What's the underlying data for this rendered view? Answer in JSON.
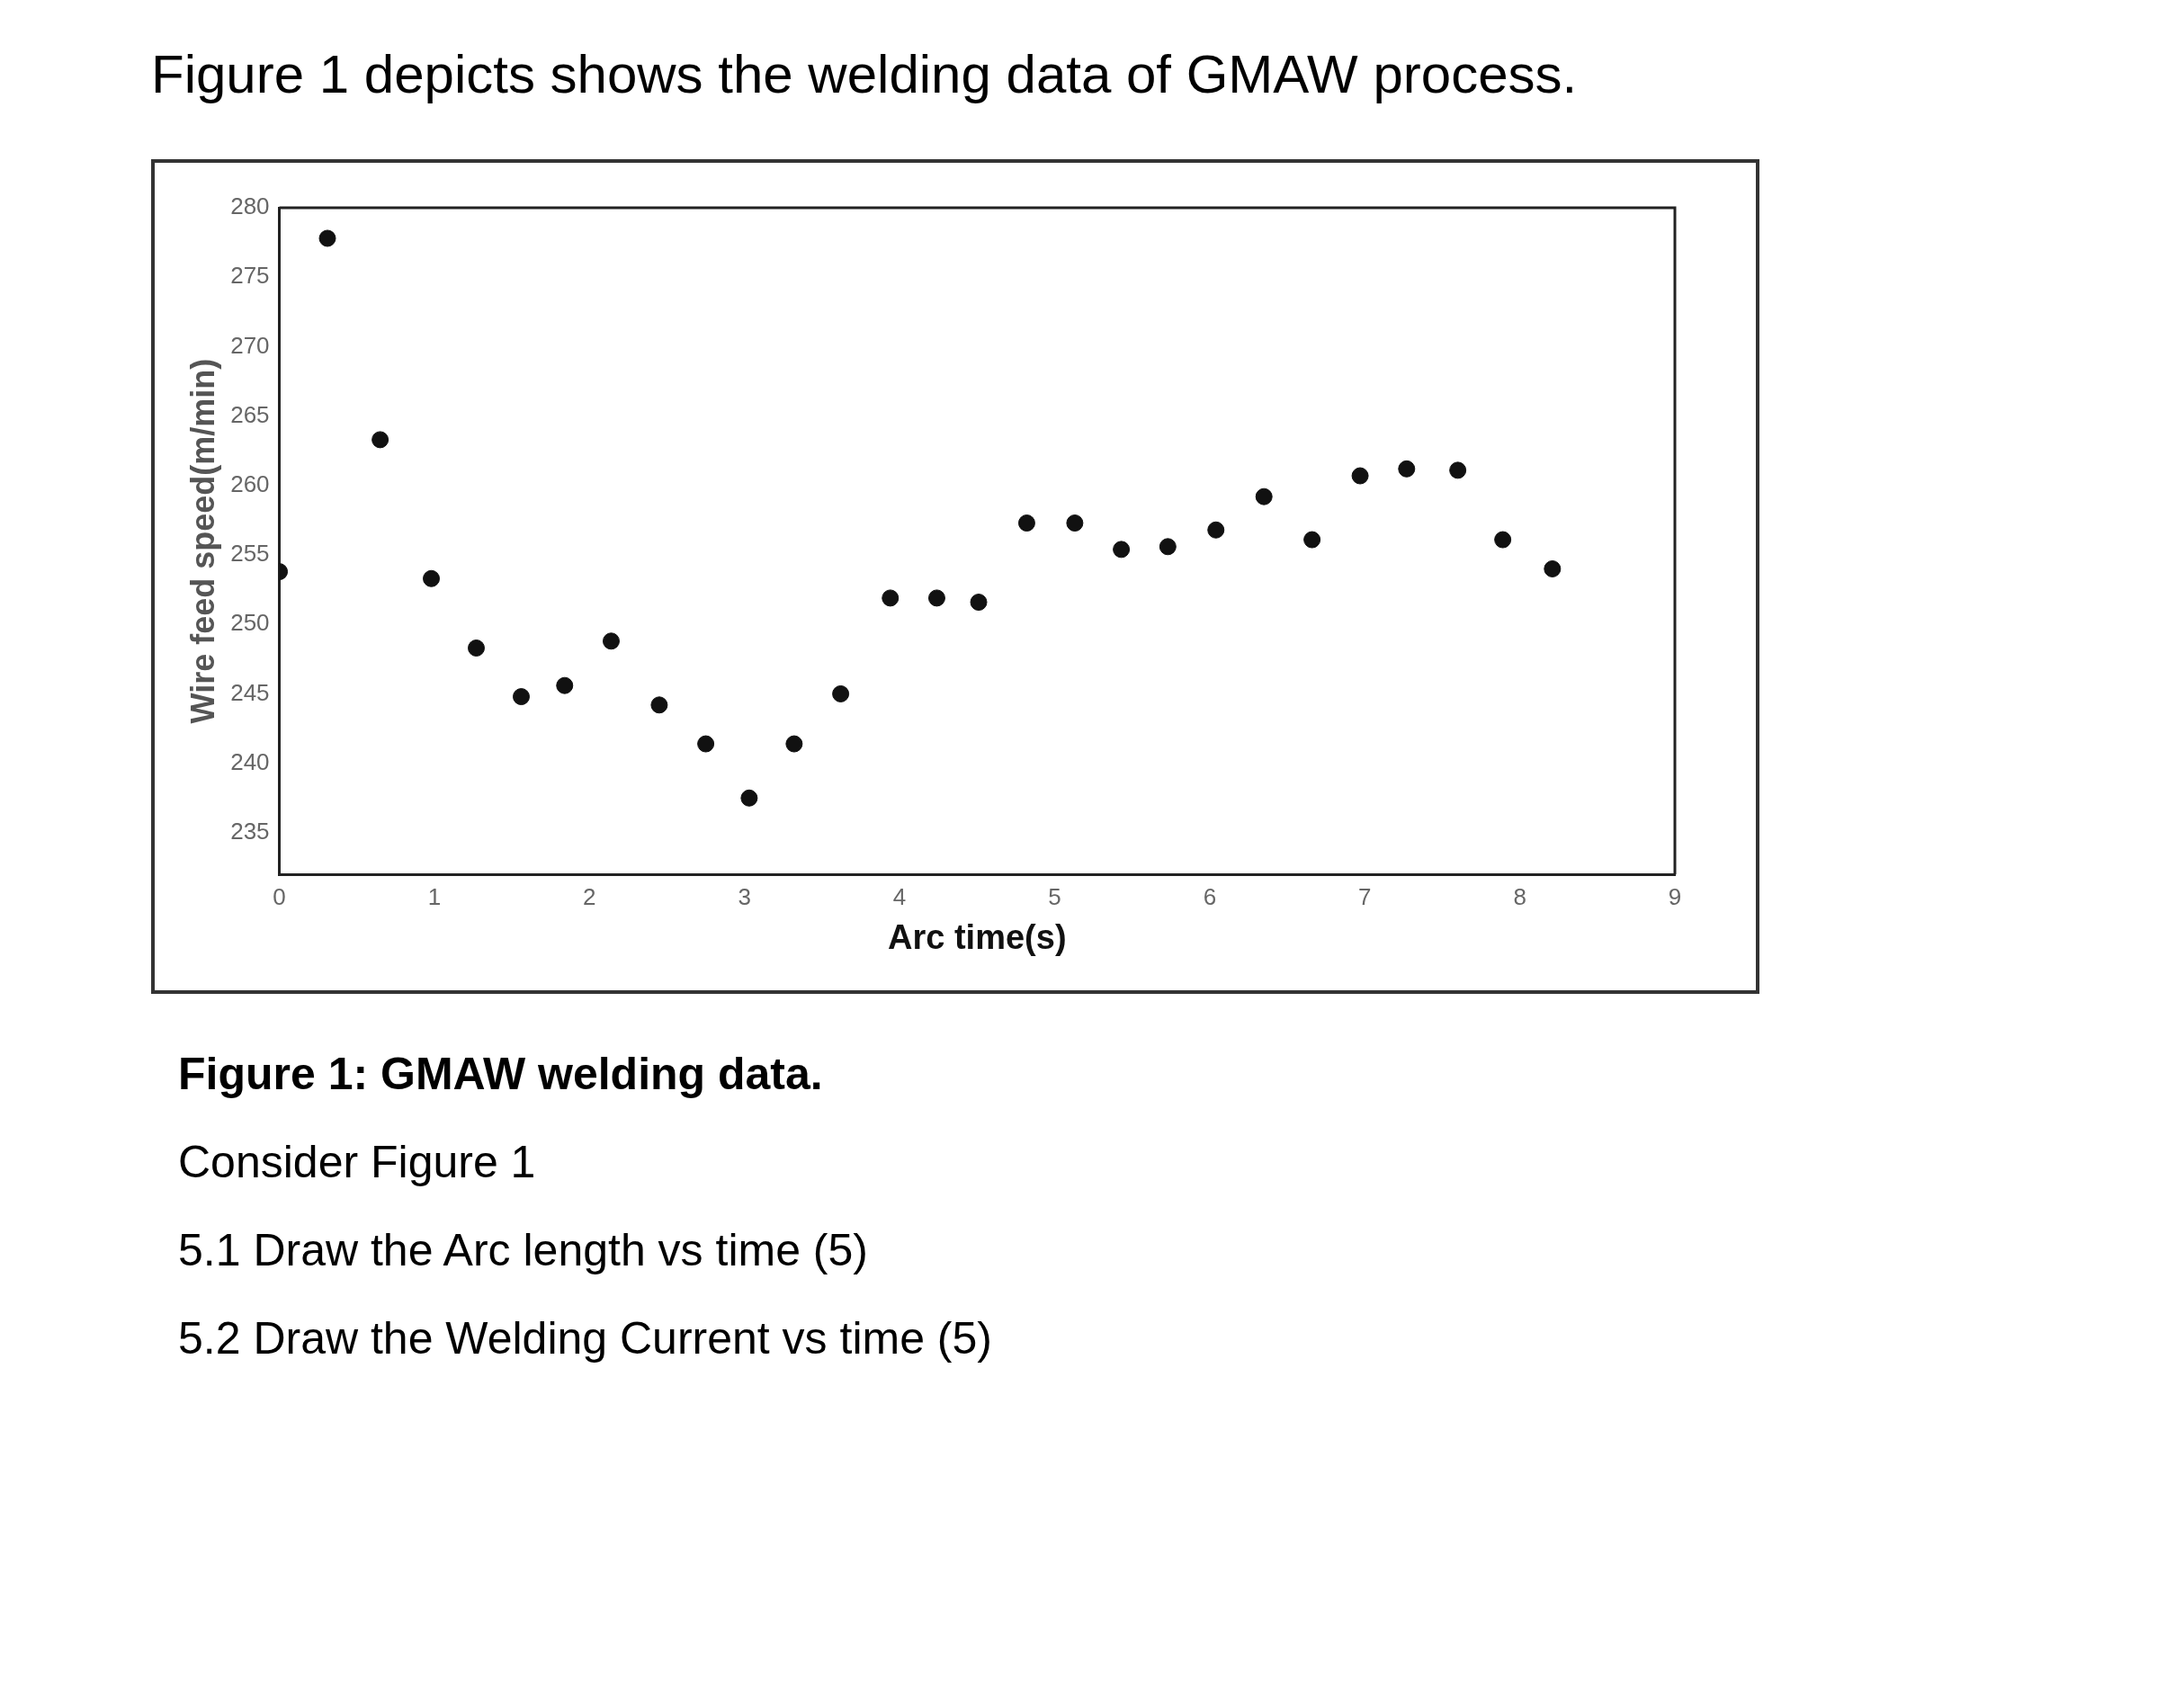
{
  "chart_data": {
    "type": "scatter",
    "title": "Figure 1 depicts shows the welding data of GMAW process.",
    "xlabel": "Arc time(s)",
    "ylabel": "Wire feed speed(m/min)",
    "x": [
      0,
      0.31,
      0.65,
      0.98,
      1.27,
      1.56,
      1.84,
      2.14,
      2.45,
      2.75,
      3.03,
      3.32,
      3.62,
      3.94,
      4.24,
      4.51,
      4.82,
      5.13,
      5.43,
      5.73,
      6.04,
      6.35,
      6.66,
      6.97,
      7.27,
      7.6,
      7.89,
      8.21
    ],
    "series": [
      {
        "color": "#111111",
        "values": [
          253.8,
          277.8,
          263.3,
          253.3,
          248.3,
          244.8,
          245.6,
          248.8,
          244.2,
          241.4,
          237.5,
          241.4,
          245,
          251.9,
          251.9,
          251.6,
          257.3,
          257.3,
          255.4,
          255.6,
          256.8,
          259.2,
          256.1,
          260.7,
          261.2,
          261.1,
          256.1,
          254
        ]
      }
    ],
    "xlim": [
      0,
      9
    ],
    "xticks": [
      0,
      1,
      2,
      3,
      4,
      5,
      6,
      7,
      8,
      9
    ],
    "ylim": [
      232,
      280
    ],
    "yticks": [
      235,
      240,
      245,
      250,
      255,
      260,
      265,
      270,
      275,
      280
    ],
    "grid": false,
    "legend": false,
    "marker": "circle",
    "annotations": [
      "Figure 1: GMAW welding data.",
      "Consider Figure 1",
      "5.1 Draw the Arc length vs time (5)",
      "5.2 Draw the Welding Current vs time (5)"
    ]
  }
}
